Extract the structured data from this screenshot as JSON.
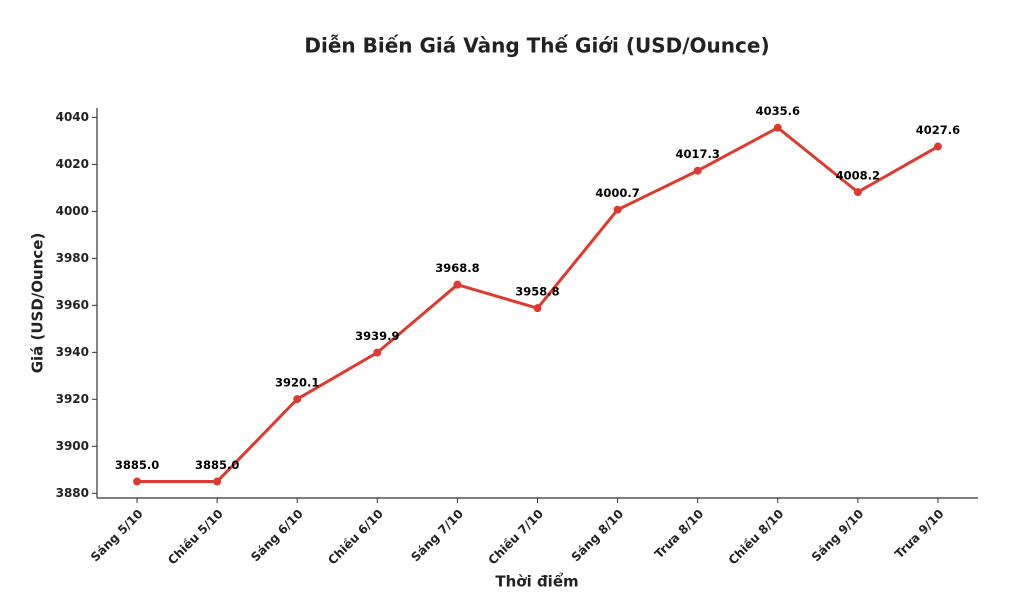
{
  "chart_data": {
    "type": "line",
    "title": "Diễn Biến Giá Vàng Thế Giới (USD/Ounce)",
    "xlabel": "Thời điểm",
    "ylabel": "Giá (USD/Ounce)",
    "categories": [
      "Sáng 5/10",
      "Chiều 5/10",
      "Sáng 6/10",
      "Chiều 6/10",
      "Sáng 7/10",
      "Chiều 7/10",
      "Sáng 8/10",
      "Trưa 8/10",
      "Chiều 8/10",
      "Sáng 9/10",
      "Trưa 9/10"
    ],
    "values": [
      3885.0,
      3885.0,
      3920.1,
      3939.9,
      3968.8,
      3958.8,
      4000.7,
      4017.3,
      4035.6,
      4008.2,
      4027.6
    ],
    "value_labels": [
      "3885.0",
      "3885.0",
      "3920.1",
      "3939.9",
      "3968.8",
      "3958.8",
      "4000.7",
      "4017.3",
      "4035.6",
      "4008.2",
      "4027.6"
    ],
    "color": "#de3a2f",
    "ylim": [
      3878,
      4044
    ],
    "yticks": [
      3880,
      3900,
      3920,
      3940,
      3960,
      3980,
      4000,
      4020,
      4040
    ],
    "grid": false
  }
}
